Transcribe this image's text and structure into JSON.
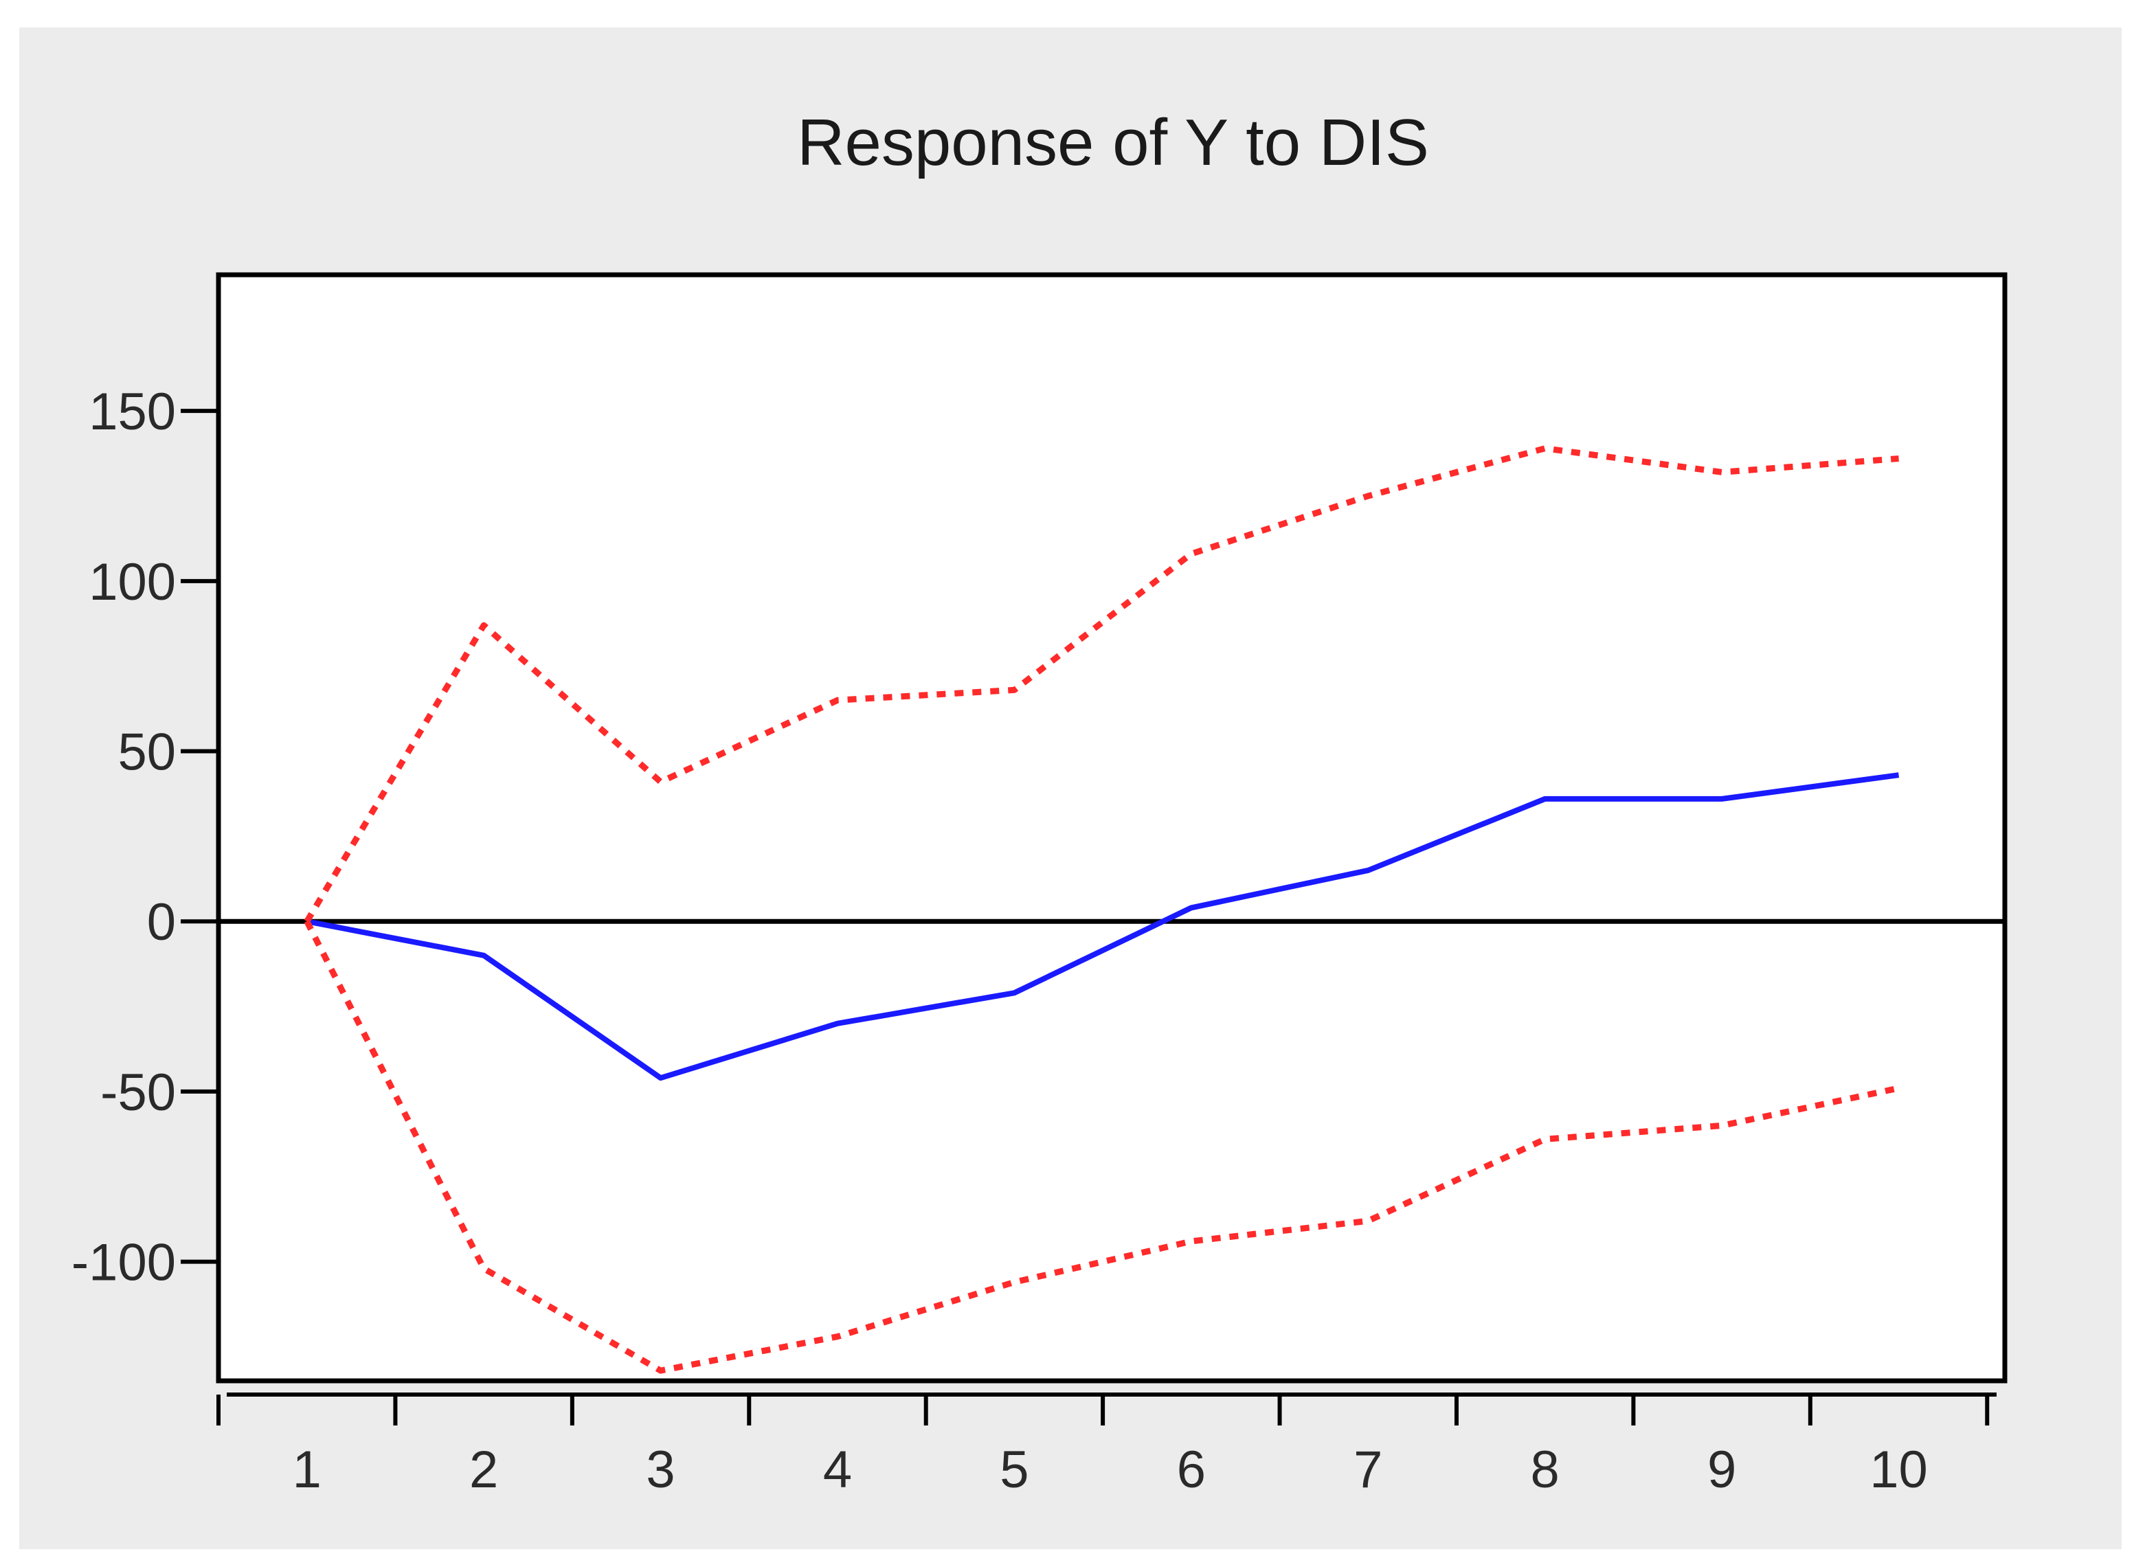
{
  "chart_data": {
    "type": "line",
    "title": "Response of Y to DIS",
    "xlabel": "",
    "ylabel": "",
    "categories": [
      "1",
      "2",
      "3",
      "4",
      "5",
      "6",
      "7",
      "8",
      "9",
      "10"
    ],
    "x": [
      1,
      2,
      3,
      4,
      5,
      6,
      7,
      8,
      9,
      10
    ],
    "ylim": [
      -135,
      190
    ],
    "xlim": [
      0.5,
      10.6
    ],
    "yticks": [
      -100,
      -50,
      0,
      50,
      100,
      150
    ],
    "ytick_labels": [
      "-100",
      "-50",
      "0",
      "50",
      "100",
      "150"
    ],
    "grid": false,
    "zero_line": true,
    "series": [
      {
        "role": "response",
        "color": "#1a1aff",
        "style": "solid",
        "values": [
          0,
          -10,
          -46,
          -30,
          -21,
          4,
          15,
          36,
          36,
          43
        ]
      },
      {
        "role": "upper-band",
        "color": "#ff2a2a",
        "style": "dotted",
        "values": [
          0,
          87,
          41,
          65,
          68,
          108,
          125,
          139,
          132,
          136
        ]
      },
      {
        "role": "lower-band",
        "color": "#ff2a2a",
        "style": "dotted",
        "values": [
          0,
          -102,
          -132,
          -122,
          -106,
          -94,
          -88,
          -64,
          -60,
          -49
        ]
      }
    ]
  }
}
